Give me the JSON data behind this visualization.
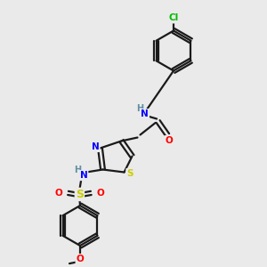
{
  "bg_color": "#eaeaea",
  "bond_color": "#1a1a1a",
  "atom_colors": {
    "N": "#0000ff",
    "S_thiazole": "#cccc00",
    "S_sulfonyl": "#cccc00",
    "O": "#ff0000",
    "Cl": "#00bb00",
    "H": "#5f8f9f",
    "C": "#1a1a1a"
  },
  "figsize": [
    3.0,
    3.0
  ],
  "dpi": 100
}
